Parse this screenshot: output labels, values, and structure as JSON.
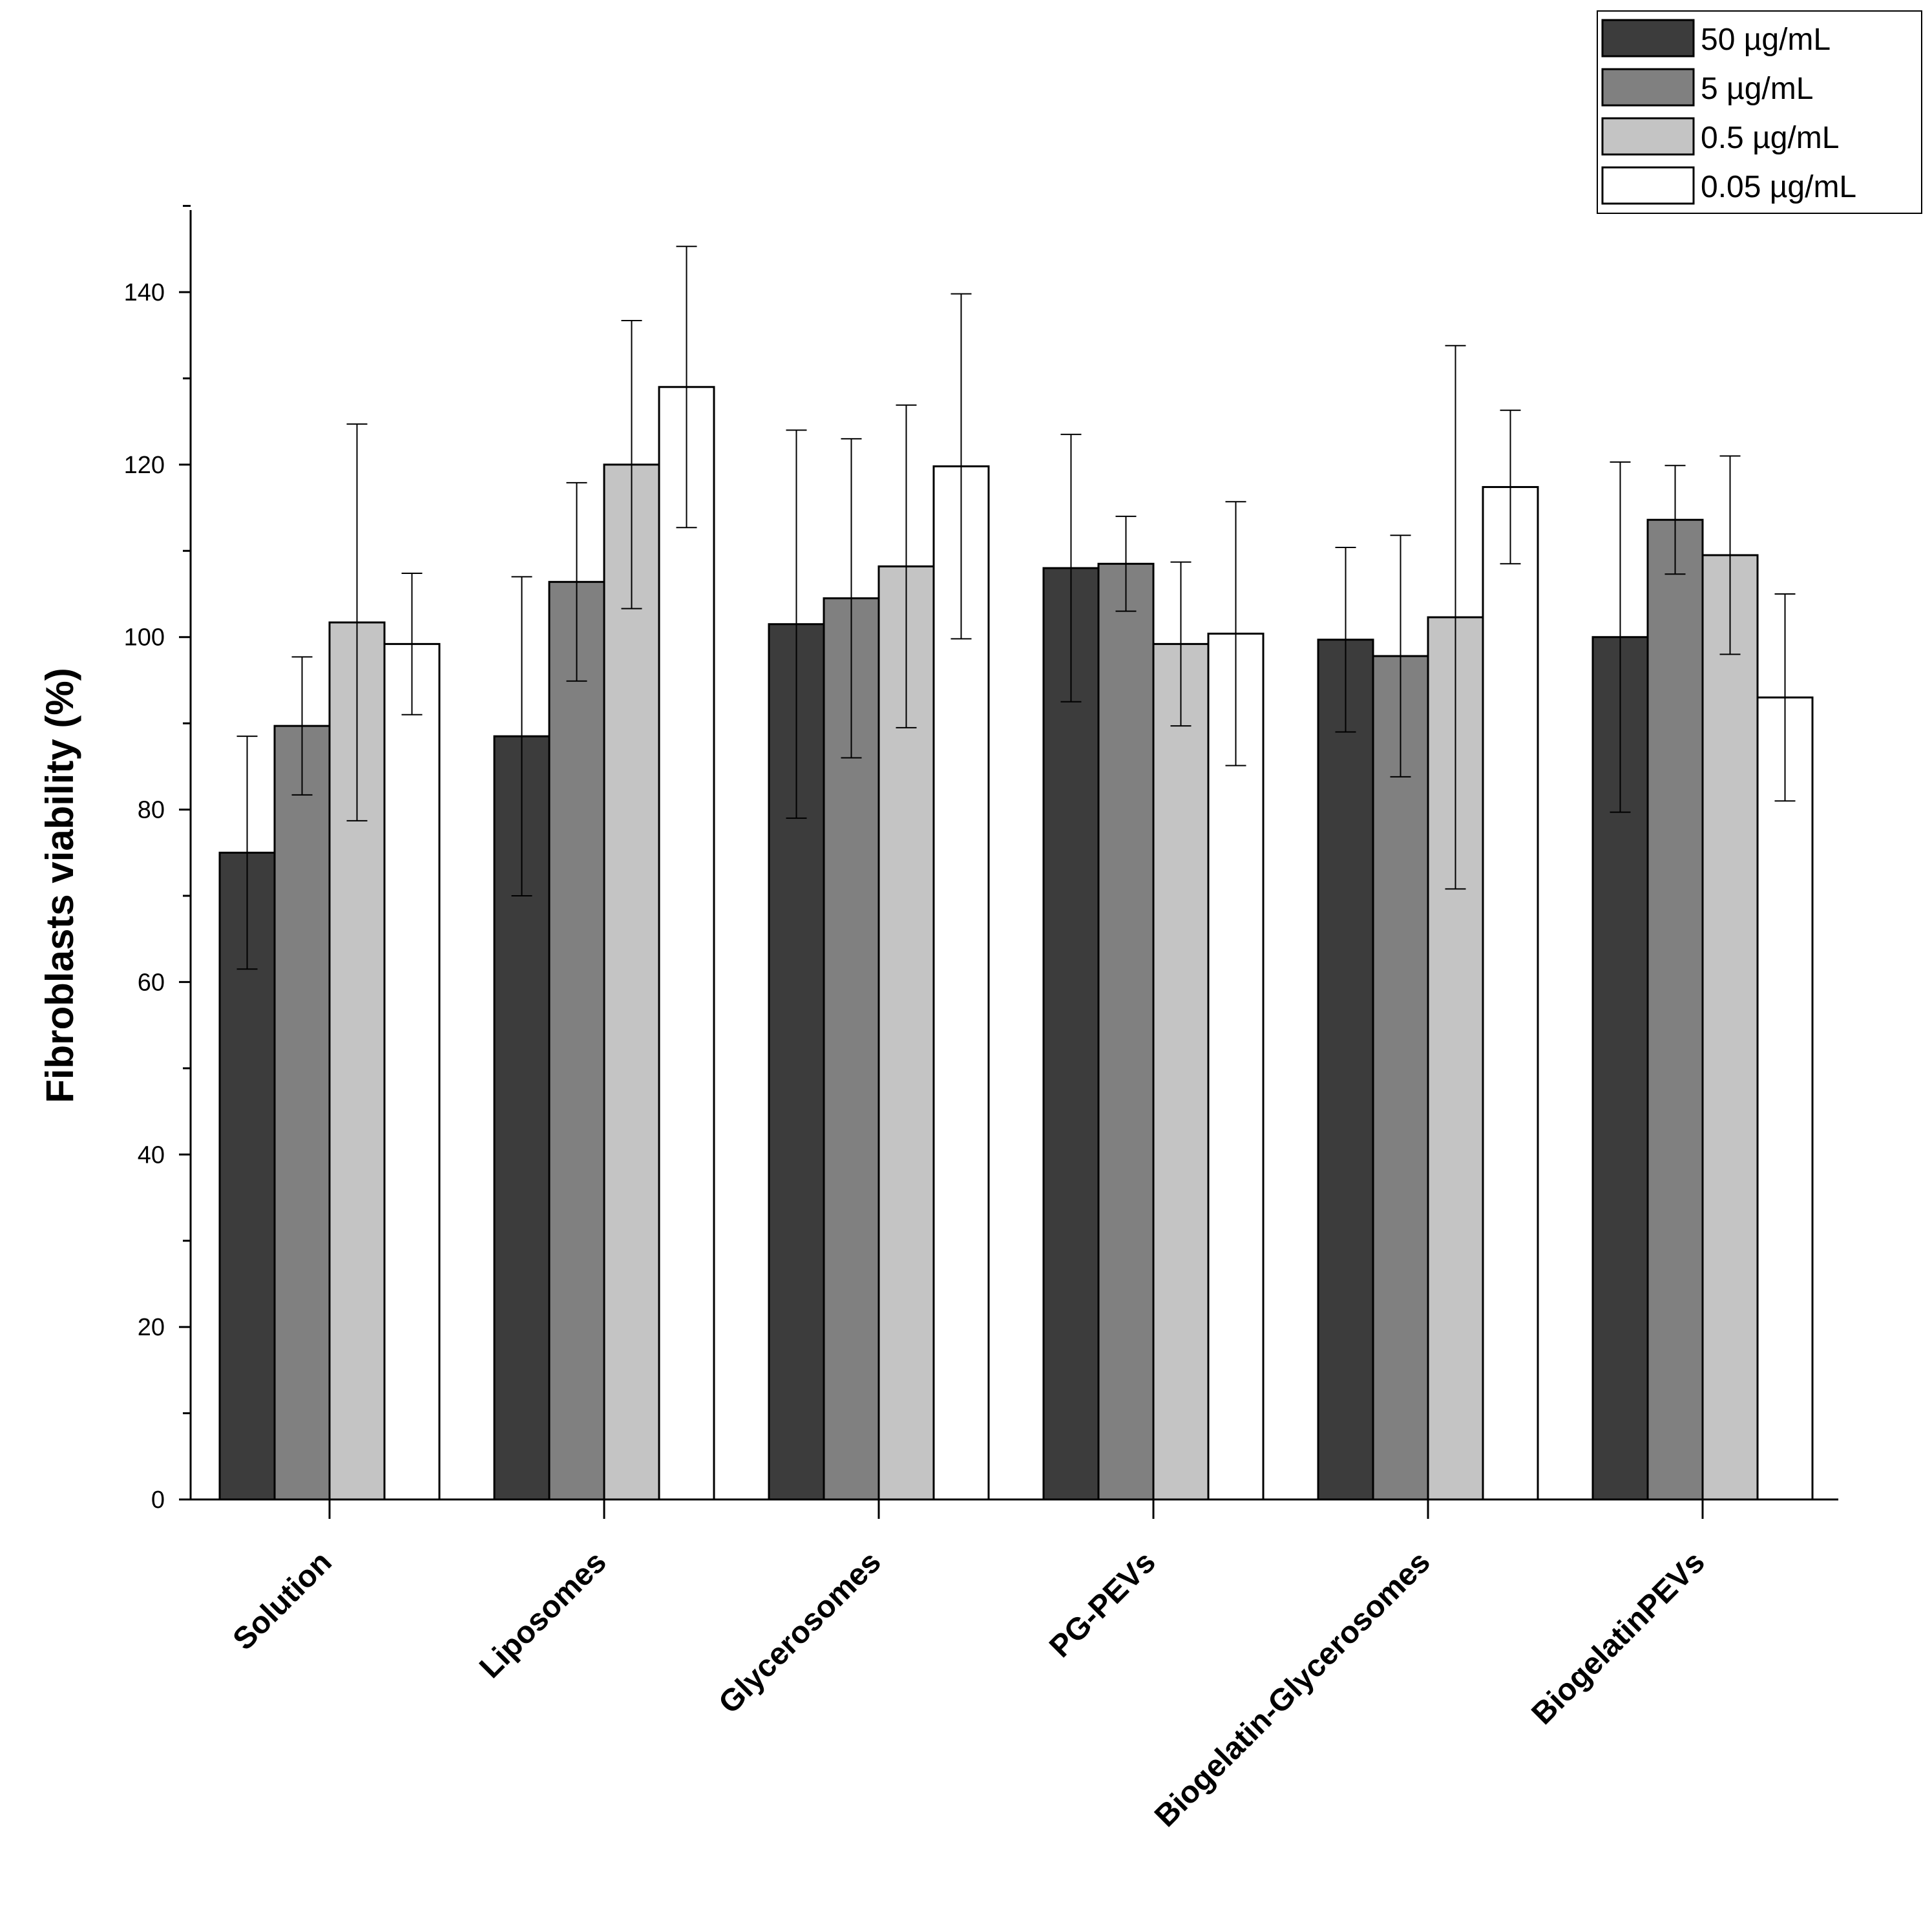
{
  "chart_data": {
    "type": "bar",
    "title": "",
    "xlabel": "",
    "ylabel": "Fibroblasts viability (%)",
    "ylim": [
      0,
      150
    ],
    "yticks": [
      0,
      20,
      40,
      60,
      80,
      100,
      120,
      140
    ],
    "ytick_labels": [
      "0",
      "20",
      "40",
      "60",
      "80",
      "100",
      "120",
      "140"
    ],
    "categories": [
      "Solution",
      "Liposomes",
      "Glycerosomes",
      "PG-PEVs",
      "Biogelatin-Glycerosomes",
      "BiogelatinPEVs"
    ],
    "series": [
      {
        "name": "50 µg/mL",
        "color": "#3c3c3c",
        "values": [
          75,
          88.5,
          101.5,
          108,
          99.7,
          100
        ],
        "errors": [
          13.5,
          18.5,
          22.5,
          15.5,
          10.7,
          20.3
        ]
      },
      {
        "name": "5 µg/mL",
        "color": "#808080",
        "values": [
          89.7,
          106.4,
          104.5,
          108.5,
          97.8,
          113.6
        ],
        "errors": [
          8,
          11.5,
          18.5,
          5.5,
          14,
          6.3
        ]
      },
      {
        "name": "0.5 µg/mL",
        "color": "#c4c4c4",
        "values": [
          101.7,
          120,
          108.2,
          99.2,
          102.3,
          109.5
        ],
        "errors": [
          23,
          16.7,
          18.7,
          9.5,
          31.5,
          11.5
        ]
      },
      {
        "name": "0.05 µg/mL",
        "color": "#ffffff",
        "values": [
          99.2,
          129,
          119.8,
          100.4,
          117.4,
          93
        ],
        "errors": [
          8.2,
          16.3,
          20,
          15.3,
          8.9,
          12
        ]
      }
    ],
    "legend_position": "top-right",
    "grid": false
  }
}
